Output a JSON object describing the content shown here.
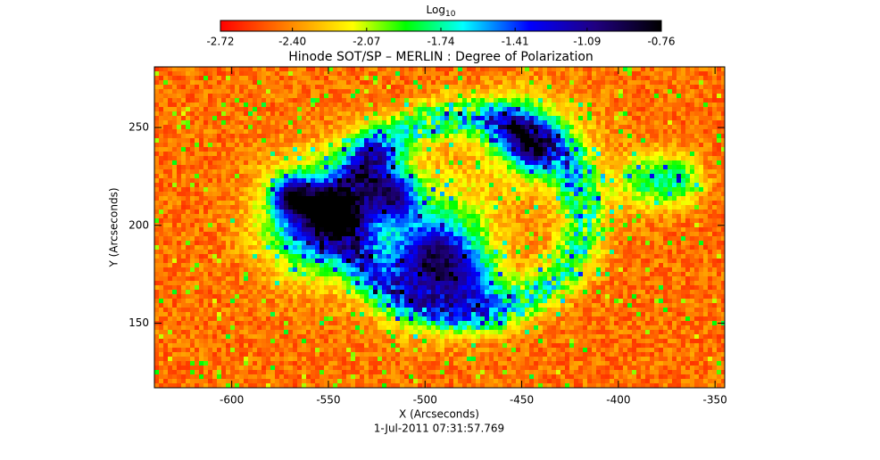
{
  "chart_data": {
    "type": "heatmap",
    "title": "Hinode SOT/SP – MERLIN : Degree of Polarization",
    "subtitle": "1-Jul-2011 07:31:57.769",
    "x_label": "X (Arcseconds)",
    "y_label": "Y (Arcseconds)",
    "xlim": [
      -640,
      -345
    ],
    "ylim": [
      117,
      281
    ],
    "xticks": [
      -600,
      -550,
      -500,
      -450,
      -400,
      -350
    ],
    "yticks": [
      150,
      200,
      250
    ],
    "colorbar": {
      "label": "Log",
      "label_sub": "10",
      "lim": [
        -2.72,
        -0.76
      ],
      "ticks": [
        -2.72,
        {
          "value": -2.4,
          "label": "-2.40"
        },
        -2.07,
        -1.74,
        -1.41,
        -1.09,
        -0.76
      ]
    }
  }
}
